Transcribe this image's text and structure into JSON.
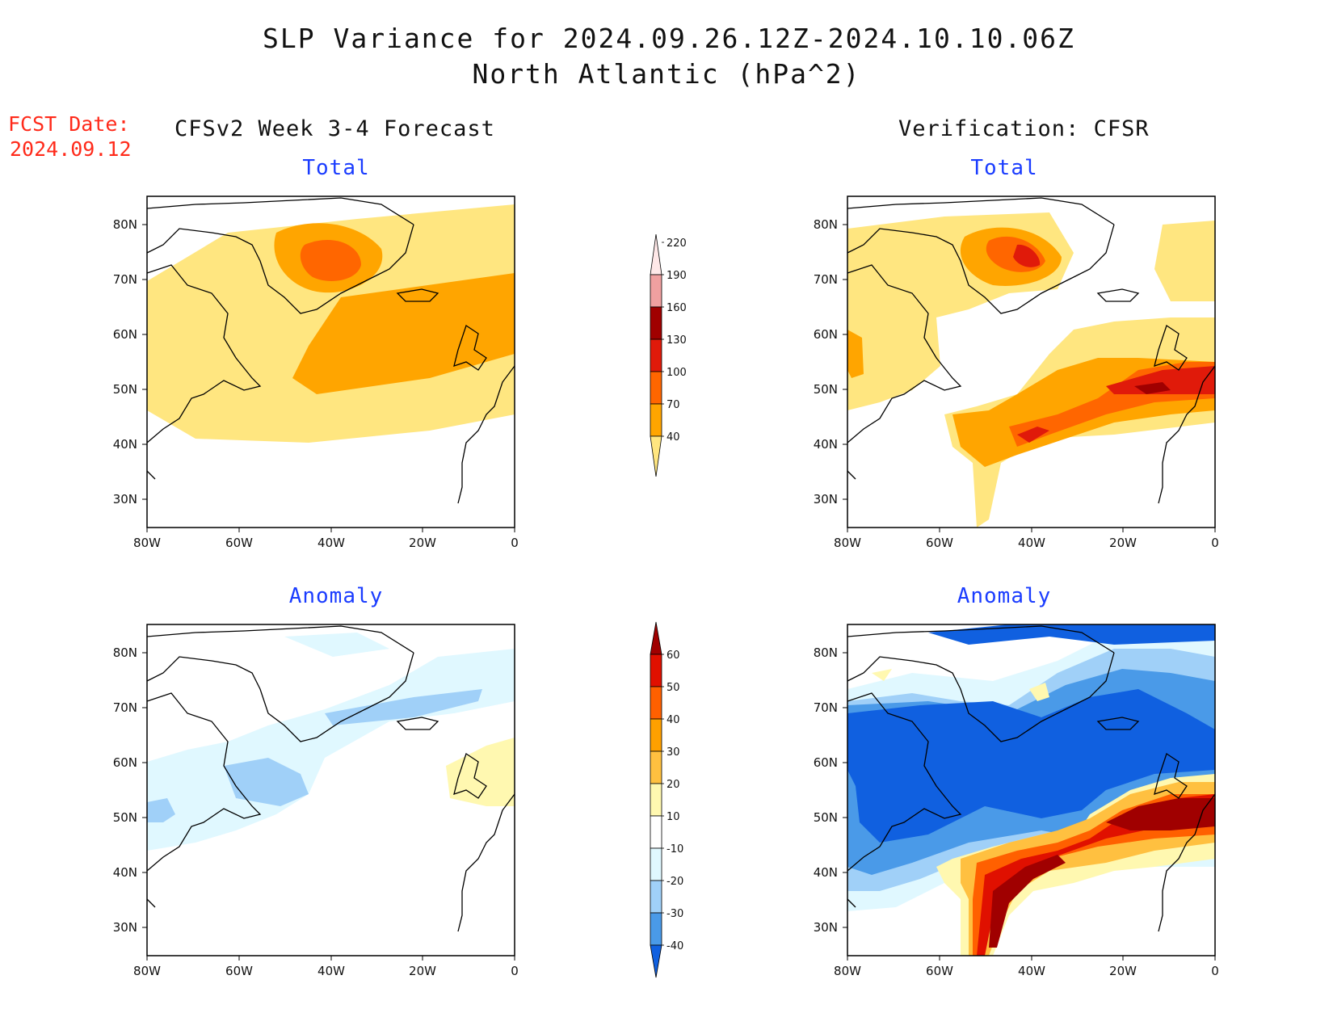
{
  "header": {
    "title_line1": "SLP Variance for 2024.09.26.12Z-2024.10.10.06Z",
    "title_line2": "North Atlantic (hPa^2)",
    "fcst_label": "FCST Date:",
    "fcst_date": "2024.09.12"
  },
  "columns": {
    "left_title": "CFSv2 Week 3-4 Forecast",
    "right_title": "Verification: CFSR"
  },
  "panels": [
    {
      "id": "fcst-total",
      "subtitle": "Total",
      "scale": "total"
    },
    {
      "id": "cfsr-total",
      "subtitle": "Total",
      "scale": "total"
    },
    {
      "id": "fcst-anom",
      "subtitle": "Anomaly",
      "scale": "anomaly"
    },
    {
      "id": "cfsr-anom",
      "subtitle": "Anomaly",
      "scale": "anomaly"
    }
  ],
  "axes": {
    "lat_labels": [
      "80N",
      "70N",
      "60N",
      "50N",
      "40N",
      "30N"
    ],
    "lon_labels": [
      "80W",
      "60W",
      "40W",
      "20W",
      "0"
    ],
    "lon_range": [
      -80,
      0
    ],
    "lat_range": [
      25,
      85
    ]
  },
  "colorbars": {
    "total": {
      "levels": [
        "40",
        "70",
        "100",
        "130",
        "160",
        "190",
        "220"
      ],
      "colors": [
        "#ffe680",
        "#ffa500",
        "#ff6600",
        "#e01a0a",
        "#a00000",
        "#f0a0a0",
        "#ffe8e8"
      ]
    },
    "anomaly": {
      "levels": [
        "-40",
        "-30",
        "-20",
        "-10",
        "10",
        "20",
        "30",
        "40",
        "50",
        "60"
      ],
      "colors": [
        "#1060e0",
        "#4a9ae8",
        "#a0d0f8",
        "#e0f8ff",
        "#ffffff",
        "#fff8b0",
        "#ffc040",
        "#ffa000",
        "#ff6000",
        "#e01000",
        "#a00000"
      ]
    }
  }
}
